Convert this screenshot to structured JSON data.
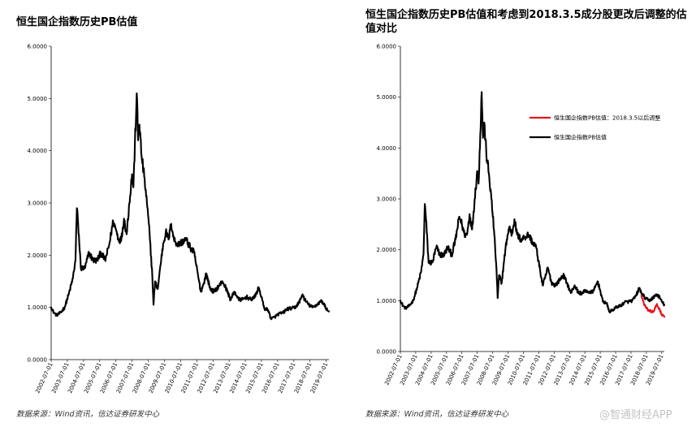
{
  "left_title": "恒生国企指数历史PB估值",
  "right_title": "恒生国企指数历史PB估值和考虑到2018.3.5成分股更改后调整的估值对比",
  "left_source": "数据来源：Wind资讯，信达证券研发中心",
  "right_source": "数据来源：Wind资讯，信达证券研发中心",
  "watermark": "@智通财经APP",
  "colors": {
    "black_series": "#000000",
    "red_series": "#e8141b"
  },
  "chart_data": [
    {
      "type": "line",
      "title": "恒生国企指数历史PB估值",
      "ylim": [
        0,
        6
      ],
      "y_ticks": [
        "0.0000",
        "1.0000",
        "2.0000",
        "3.0000",
        "4.0000",
        "5.0000",
        "6.0000"
      ],
      "x_ticks": [
        "2002-07-01",
        "2003-07-01",
        "2004-07-01",
        "2005-07-01",
        "2006-07-01",
        "2007-07-01",
        "2008-07-01",
        "2009-07-01",
        "2010-07-01",
        "2011-07-01",
        "2012-07-01",
        "2013-07-01",
        "2014-07-01",
        "2015-07-01",
        "2016-07-01",
        "2017-07-01",
        "2018-07-01",
        "2019-07-01"
      ],
      "xlim": [
        "2002-07-01",
        "2019-09-01"
      ],
      "grid": false,
      "legend": "none",
      "series": [
        {
          "color": "#000000",
          "points": [
            [
              "2002-07-01",
              1.0
            ],
            [
              "2002-09-01",
              0.9
            ],
            [
              "2002-11-01",
              0.85
            ],
            [
              "2003-02-01",
              0.9
            ],
            [
              "2003-05-01",
              1.0
            ],
            [
              "2003-08-01",
              1.25
            ],
            [
              "2003-11-01",
              1.55
            ],
            [
              "2004-01-01",
              1.9
            ],
            [
              "2004-02-01",
              2.9
            ],
            [
              "2004-03-01",
              2.6
            ],
            [
              "2004-05-01",
              1.75
            ],
            [
              "2004-08-01",
              1.75
            ],
            [
              "2004-11-01",
              2.05
            ],
            [
              "2005-02-01",
              1.9
            ],
            [
              "2005-05-01",
              1.9
            ],
            [
              "2005-08-01",
              2.05
            ],
            [
              "2005-11-01",
              1.9
            ],
            [
              "2006-02-01",
              2.2
            ],
            [
              "2006-05-01",
              2.65
            ],
            [
              "2006-07-01",
              2.5
            ],
            [
              "2006-09-01",
              2.3
            ],
            [
              "2006-11-01",
              2.3
            ],
            [
              "2007-01-01",
              2.7
            ],
            [
              "2007-03-01",
              2.4
            ],
            [
              "2007-05-01",
              3.0
            ],
            [
              "2007-07-01",
              3.55
            ],
            [
              "2007-08-01",
              3.3
            ],
            [
              "2007-10-15",
              5.1
            ],
            [
              "2007-11-15",
              4.2
            ],
            [
              "2007-12-15",
              4.5
            ],
            [
              "2008-02-01",
              3.9
            ],
            [
              "2008-04-01",
              3.5
            ],
            [
              "2008-06-01",
              3.0
            ],
            [
              "2008-08-01",
              2.4
            ],
            [
              "2008-10-01",
              1.6
            ],
            [
              "2008-10-28",
              1.05
            ],
            [
              "2008-12-01",
              1.5
            ],
            [
              "2009-02-01",
              1.35
            ],
            [
              "2009-04-01",
              1.8
            ],
            [
              "2009-06-01",
              2.2
            ],
            [
              "2009-08-01",
              2.45
            ],
            [
              "2009-10-01",
              2.3
            ],
            [
              "2009-12-01",
              2.6
            ],
            [
              "2010-02-01",
              2.3
            ],
            [
              "2010-05-01",
              2.2
            ],
            [
              "2010-08-01",
              2.25
            ],
            [
              "2010-11-01",
              2.3
            ],
            [
              "2011-02-01",
              2.15
            ],
            [
              "2011-05-01",
              2.05
            ],
            [
              "2011-08-01",
              1.6
            ],
            [
              "2011-10-01",
              1.3
            ],
            [
              "2011-12-01",
              1.45
            ],
            [
              "2012-02-01",
              1.65
            ],
            [
              "2012-05-01",
              1.35
            ],
            [
              "2012-08-01",
              1.3
            ],
            [
              "2012-11-01",
              1.4
            ],
            [
              "2013-02-01",
              1.5
            ],
            [
              "2013-05-01",
              1.35
            ],
            [
              "2013-08-01",
              1.15
            ],
            [
              "2013-11-01",
              1.3
            ],
            [
              "2014-02-01",
              1.15
            ],
            [
              "2014-05-01",
              1.15
            ],
            [
              "2014-08-01",
              1.2
            ],
            [
              "2014-11-01",
              1.15
            ],
            [
              "2015-02-01",
              1.2
            ],
            [
              "2015-05-01",
              1.38
            ],
            [
              "2015-07-01",
              1.2
            ],
            [
              "2015-09-01",
              0.98
            ],
            [
              "2015-12-01",
              0.95
            ],
            [
              "2016-02-01",
              0.78
            ],
            [
              "2016-05-01",
              0.82
            ],
            [
              "2016-08-01",
              0.88
            ],
            [
              "2016-11-01",
              0.9
            ],
            [
              "2017-02-01",
              0.97
            ],
            [
              "2017-05-01",
              0.98
            ],
            [
              "2017-08-01",
              1.0
            ],
            [
              "2017-11-01",
              1.1
            ],
            [
              "2018-01-15",
              1.25
            ],
            [
              "2018-03-01",
              1.15
            ],
            [
              "2018-06-01",
              1.05
            ],
            [
              "2018-09-01",
              1.0
            ],
            [
              "2018-12-01",
              1.05
            ],
            [
              "2019-03-01",
              1.12
            ],
            [
              "2019-05-01",
              1.08
            ],
            [
              "2019-07-01",
              0.98
            ],
            [
              "2019-09-01",
              0.92
            ]
          ]
        }
      ]
    },
    {
      "type": "line",
      "title": "恒生国企指数历史PB估值和考虑到2018.3.5成分股更改后调整的估值对比",
      "ylim": [
        0,
        6
      ],
      "y_ticks": [
        "0.0000",
        "1.0000",
        "2.0000",
        "3.0000",
        "4.0000",
        "5.0000",
        "6.0000"
      ],
      "x_ticks": [
        "2002-07-01",
        "2003-07-01",
        "2004-07-01",
        "2005-07-01",
        "2006-07-01",
        "2007-07-01",
        "2008-07-01",
        "2009-07-01",
        "2010-07-01",
        "2011-07-01",
        "2012-07-01",
        "2013-07-01",
        "2014-07-01",
        "2015-07-01",
        "2016-07-01",
        "2017-07-01",
        "2018-07-01",
        "2019-07-01"
      ],
      "xlim": [
        "2002-07-01",
        "2019-09-01"
      ],
      "grid": false,
      "legend": "right",
      "series": [
        {
          "name": "恒生国企指数PB估值：2018.3.5以后调整",
          "color": "#e8141b",
          "points": [
            [
              "2018-03-05",
              1.1
            ],
            [
              "2018-05-01",
              0.95
            ],
            [
              "2018-07-01",
              0.85
            ],
            [
              "2018-09-01",
              0.8
            ],
            [
              "2018-11-01",
              0.78
            ],
            [
              "2019-01-01",
              0.8
            ],
            [
              "2019-03-01",
              0.92
            ],
            [
              "2019-05-01",
              0.85
            ],
            [
              "2019-07-01",
              0.72
            ],
            [
              "2019-09-01",
              0.68
            ]
          ]
        },
        {
          "name": "恒生国企指数PB估值",
          "color": "#000000",
          "points": [
            [
              "2002-07-01",
              1.0
            ],
            [
              "2002-09-01",
              0.9
            ],
            [
              "2002-11-01",
              0.85
            ],
            [
              "2003-02-01",
              0.9
            ],
            [
              "2003-05-01",
              1.0
            ],
            [
              "2003-08-01",
              1.25
            ],
            [
              "2003-11-01",
              1.55
            ],
            [
              "2004-01-01",
              1.9
            ],
            [
              "2004-02-01",
              2.9
            ],
            [
              "2004-03-01",
              2.6
            ],
            [
              "2004-05-01",
              1.75
            ],
            [
              "2004-08-01",
              1.75
            ],
            [
              "2004-11-01",
              2.05
            ],
            [
              "2005-02-01",
              1.9
            ],
            [
              "2005-05-01",
              1.9
            ],
            [
              "2005-08-01",
              2.05
            ],
            [
              "2005-11-01",
              1.9
            ],
            [
              "2006-02-01",
              2.2
            ],
            [
              "2006-05-01",
              2.65
            ],
            [
              "2006-07-01",
              2.5
            ],
            [
              "2006-09-01",
              2.3
            ],
            [
              "2006-11-01",
              2.3
            ],
            [
              "2007-01-01",
              2.7
            ],
            [
              "2007-03-01",
              2.4
            ],
            [
              "2007-05-01",
              3.0
            ],
            [
              "2007-07-01",
              3.55
            ],
            [
              "2007-08-01",
              3.3
            ],
            [
              "2007-10-15",
              5.1
            ],
            [
              "2007-11-15",
              4.2
            ],
            [
              "2007-12-15",
              4.5
            ],
            [
              "2008-02-01",
              3.9
            ],
            [
              "2008-04-01",
              3.5
            ],
            [
              "2008-06-01",
              3.0
            ],
            [
              "2008-08-01",
              2.4
            ],
            [
              "2008-10-01",
              1.6
            ],
            [
              "2008-10-28",
              1.05
            ],
            [
              "2008-12-01",
              1.5
            ],
            [
              "2009-02-01",
              1.35
            ],
            [
              "2009-04-01",
              1.8
            ],
            [
              "2009-06-01",
              2.2
            ],
            [
              "2009-08-01",
              2.45
            ],
            [
              "2009-10-01",
              2.3
            ],
            [
              "2009-12-01",
              2.6
            ],
            [
              "2010-02-01",
              2.3
            ],
            [
              "2010-05-01",
              2.2
            ],
            [
              "2010-08-01",
              2.25
            ],
            [
              "2010-11-01",
              2.3
            ],
            [
              "2011-02-01",
              2.15
            ],
            [
              "2011-05-01",
              2.05
            ],
            [
              "2011-08-01",
              1.6
            ],
            [
              "2011-10-01",
              1.3
            ],
            [
              "2011-12-01",
              1.45
            ],
            [
              "2012-02-01",
              1.65
            ],
            [
              "2012-05-01",
              1.35
            ],
            [
              "2012-08-01",
              1.3
            ],
            [
              "2012-11-01",
              1.4
            ],
            [
              "2013-02-01",
              1.5
            ],
            [
              "2013-05-01",
              1.35
            ],
            [
              "2013-08-01",
              1.15
            ],
            [
              "2013-11-01",
              1.3
            ],
            [
              "2014-02-01",
              1.15
            ],
            [
              "2014-05-01",
              1.15
            ],
            [
              "2014-08-01",
              1.2
            ],
            [
              "2014-11-01",
              1.15
            ],
            [
              "2015-02-01",
              1.2
            ],
            [
              "2015-05-01",
              1.38
            ],
            [
              "2015-07-01",
              1.2
            ],
            [
              "2015-09-01",
              0.98
            ],
            [
              "2015-12-01",
              0.95
            ],
            [
              "2016-02-01",
              0.78
            ],
            [
              "2016-05-01",
              0.82
            ],
            [
              "2016-08-01",
              0.88
            ],
            [
              "2016-11-01",
              0.9
            ],
            [
              "2017-02-01",
              0.97
            ],
            [
              "2017-05-01",
              0.98
            ],
            [
              "2017-08-01",
              1.0
            ],
            [
              "2017-11-01",
              1.1
            ],
            [
              "2018-01-15",
              1.25
            ],
            [
              "2018-03-01",
              1.15
            ],
            [
              "2018-06-01",
              1.05
            ],
            [
              "2018-09-01",
              1.0
            ],
            [
              "2018-12-01",
              1.05
            ],
            [
              "2019-03-01",
              1.12
            ],
            [
              "2019-05-01",
              1.08
            ],
            [
              "2019-07-01",
              0.98
            ],
            [
              "2019-09-01",
              0.92
            ]
          ]
        }
      ]
    }
  ]
}
